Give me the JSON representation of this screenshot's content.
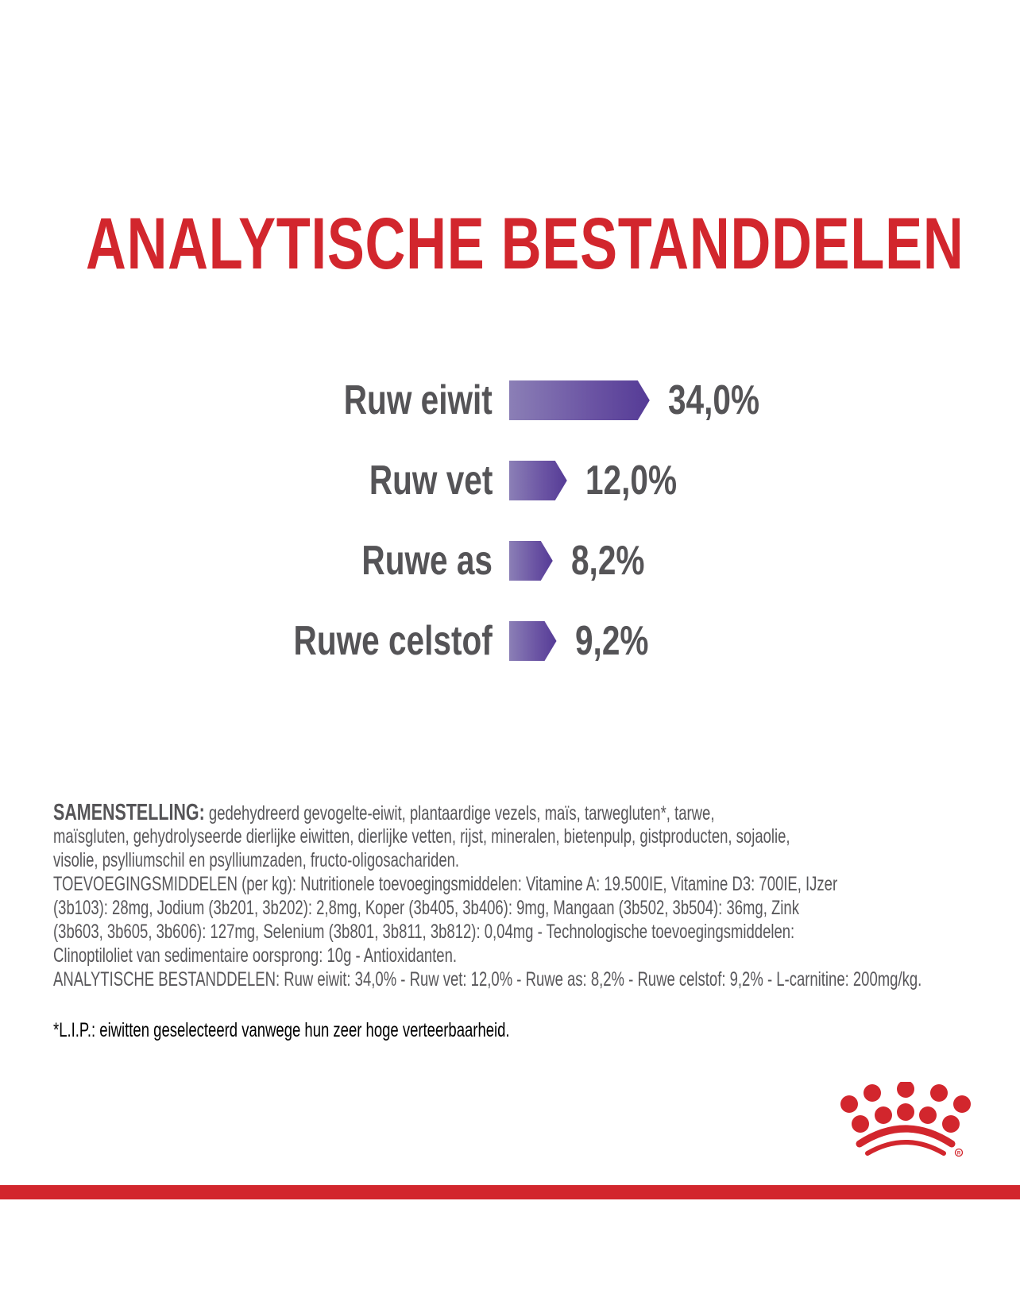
{
  "title": "ANALYTISCHE BESTANDDELEN",
  "colors": {
    "brand_red": "#d2262d",
    "bar_purple": "#553b96",
    "text_gray": "#555457"
  },
  "chart_data": {
    "type": "bar",
    "orientation": "horizontal",
    "title": "ANALYTISCHE BESTANDDELEN",
    "categories": [
      "Ruw eiwit",
      "Ruw vet",
      "Ruwe as",
      "Ruwe celstof"
    ],
    "values": [
      34.0,
      12.0,
      8.2,
      9.2
    ],
    "value_labels": [
      "34,0%",
      "12,0%",
      "8,2%",
      "9,2%"
    ],
    "unit": "%"
  },
  "composition": {
    "heading": "SAMENSTELLING:",
    "lines": [
      "gedehydreerd gevogelte-eiwit, plantaardige vezels, maïs, tarwegluten*, tarwe,",
      "maïsgluten, gehydrolyseerde dierlijke eiwitten, dierlijke vetten, rijst, mineralen, bietenpulp, gistproducten, sojaolie,",
      "visolie, psylliumschil en psylliumzaden, fructo-oligosachariden.",
      "TOEVOEGINGSMIDDELEN (per kg): Nutritionele toevoegingsmiddelen: Vitamine A: 19.500IE, Vitamine D3: 700IE, IJzer",
      "(3b103): 28mg, Jodium (3b201, 3b202): 2,8mg, Koper (3b405, 3b406): 9mg, Mangaan (3b502, 3b504): 36mg, Zink",
      "(3b603, 3b605, 3b606): 127mg, Selenium (3b801, 3b811, 3b812): 0,04mg - Technologische toevoegingsmiddelen:",
      "Clinoptiloliet van sedimentaire oorsprong: 10g - Antioxidanten.",
      "ANALYTISCHE BESTANDDELEN: Ruw eiwit: 34,0% - Ruw vet: 12,0% - Ruwe as: 8,2% - Ruwe celstof: 9,2% - L-carnitine: 200mg/kg."
    ],
    "footnote": "*L.I.P.: eiwitten geselecteerd vanwege hun zeer hoge verteerbaarheid."
  },
  "logo": "Royal Canin crown logo ®"
}
